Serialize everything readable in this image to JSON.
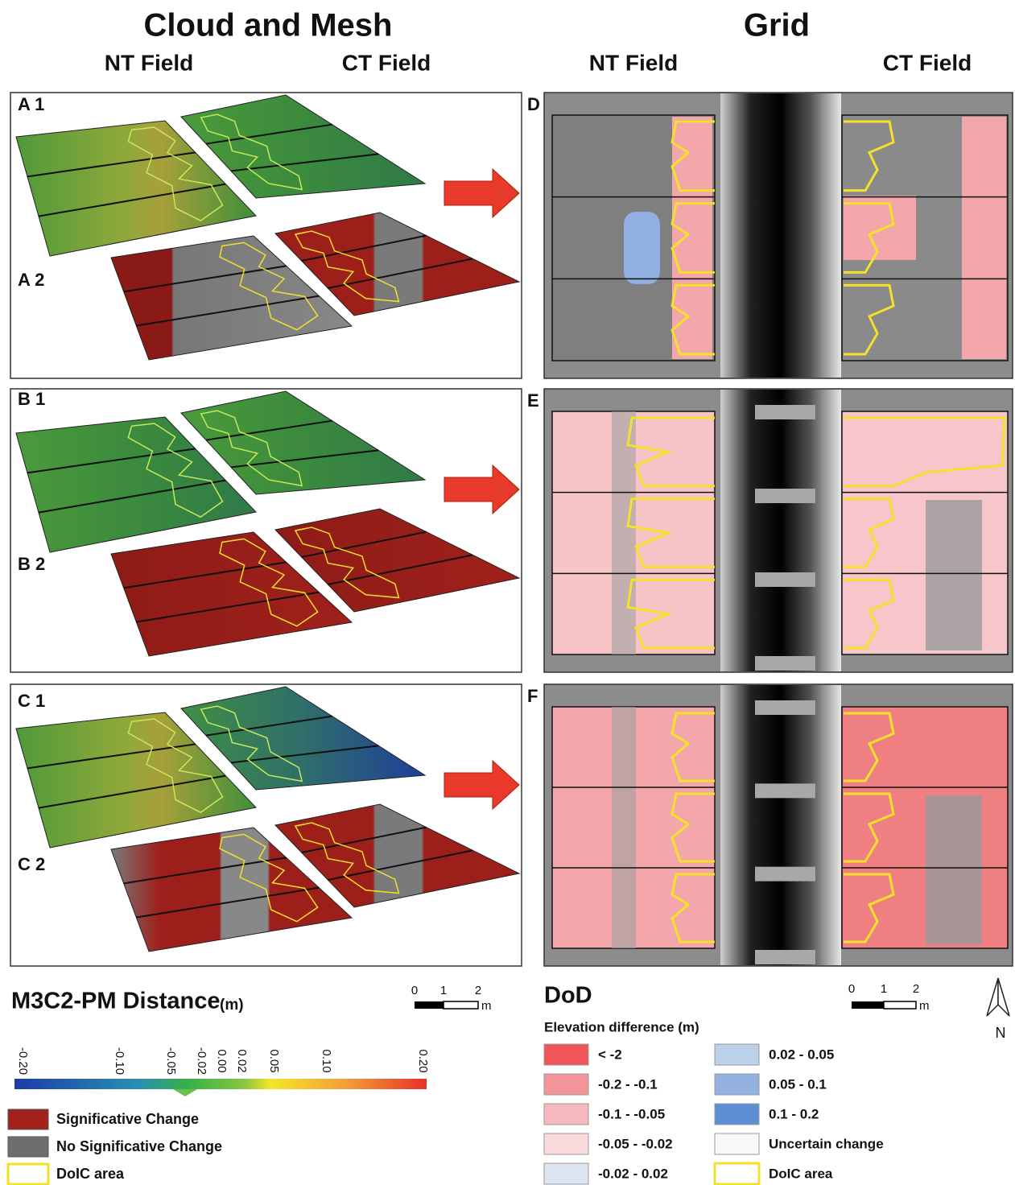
{
  "titles": {
    "cloud_mesh": "Cloud and Mesh",
    "grid": "Grid"
  },
  "field_labels": [
    "NT Field",
    "CT Field",
    "NT Field",
    "CT Field"
  ],
  "panel_labels": [
    "A 1",
    "A 2",
    "B 1",
    "B 2",
    "C 1",
    "C 2",
    "D",
    "E",
    "F"
  ],
  "m3c2_legend": {
    "title": "M3C2-PM Distance",
    "unit": "(m)",
    "scale": [
      "0",
      "1",
      "2",
      "m"
    ],
    "ticks": [
      "-0.20",
      "-0.10",
      "-0.05",
      "-0.02",
      "0.00",
      "0.02",
      "0.05",
      "0.10",
      "0.20"
    ],
    "items": [
      {
        "label": "Significative Change",
        "color": "#a3201b"
      },
      {
        "label": "No Significative Change",
        "color": "#6e6e6e"
      },
      {
        "label": "DoIC area",
        "color": "#ffffff",
        "stroke": "#f2e02a"
      }
    ]
  },
  "dod_legend": {
    "title": "DoD",
    "subtitle": "Elevation difference (m)",
    "scale": [
      "0",
      "1",
      "2",
      "m"
    ],
    "items": [
      {
        "label": "< -2",
        "color": "#f0555a"
      },
      {
        "label": "-0.2 - -0.1",
        "color": "#f4959a"
      },
      {
        "label": "-0.1 - -0.05",
        "color": "#f7b9bd"
      },
      {
        "label": "-0.05 - -0.02",
        "color": "#fadadd"
      },
      {
        "label": "-0.02 - 0.02",
        "color": "#dde6f0"
      },
      {
        "label": "0.02 - 0.05",
        "color": "#bcd1ea"
      },
      {
        "label": "0.05 - 0.1",
        "color": "#93b2e2"
      },
      {
        "label": "0.1 - 0.2",
        "color": "#5d8fd4"
      },
      {
        "label": "Uncertain change",
        "color": "#f8f8f8"
      },
      {
        "label": "DoIC area",
        "color": "#ffffff",
        "stroke": "#f2e02a"
      }
    ]
  },
  "north": "N"
}
